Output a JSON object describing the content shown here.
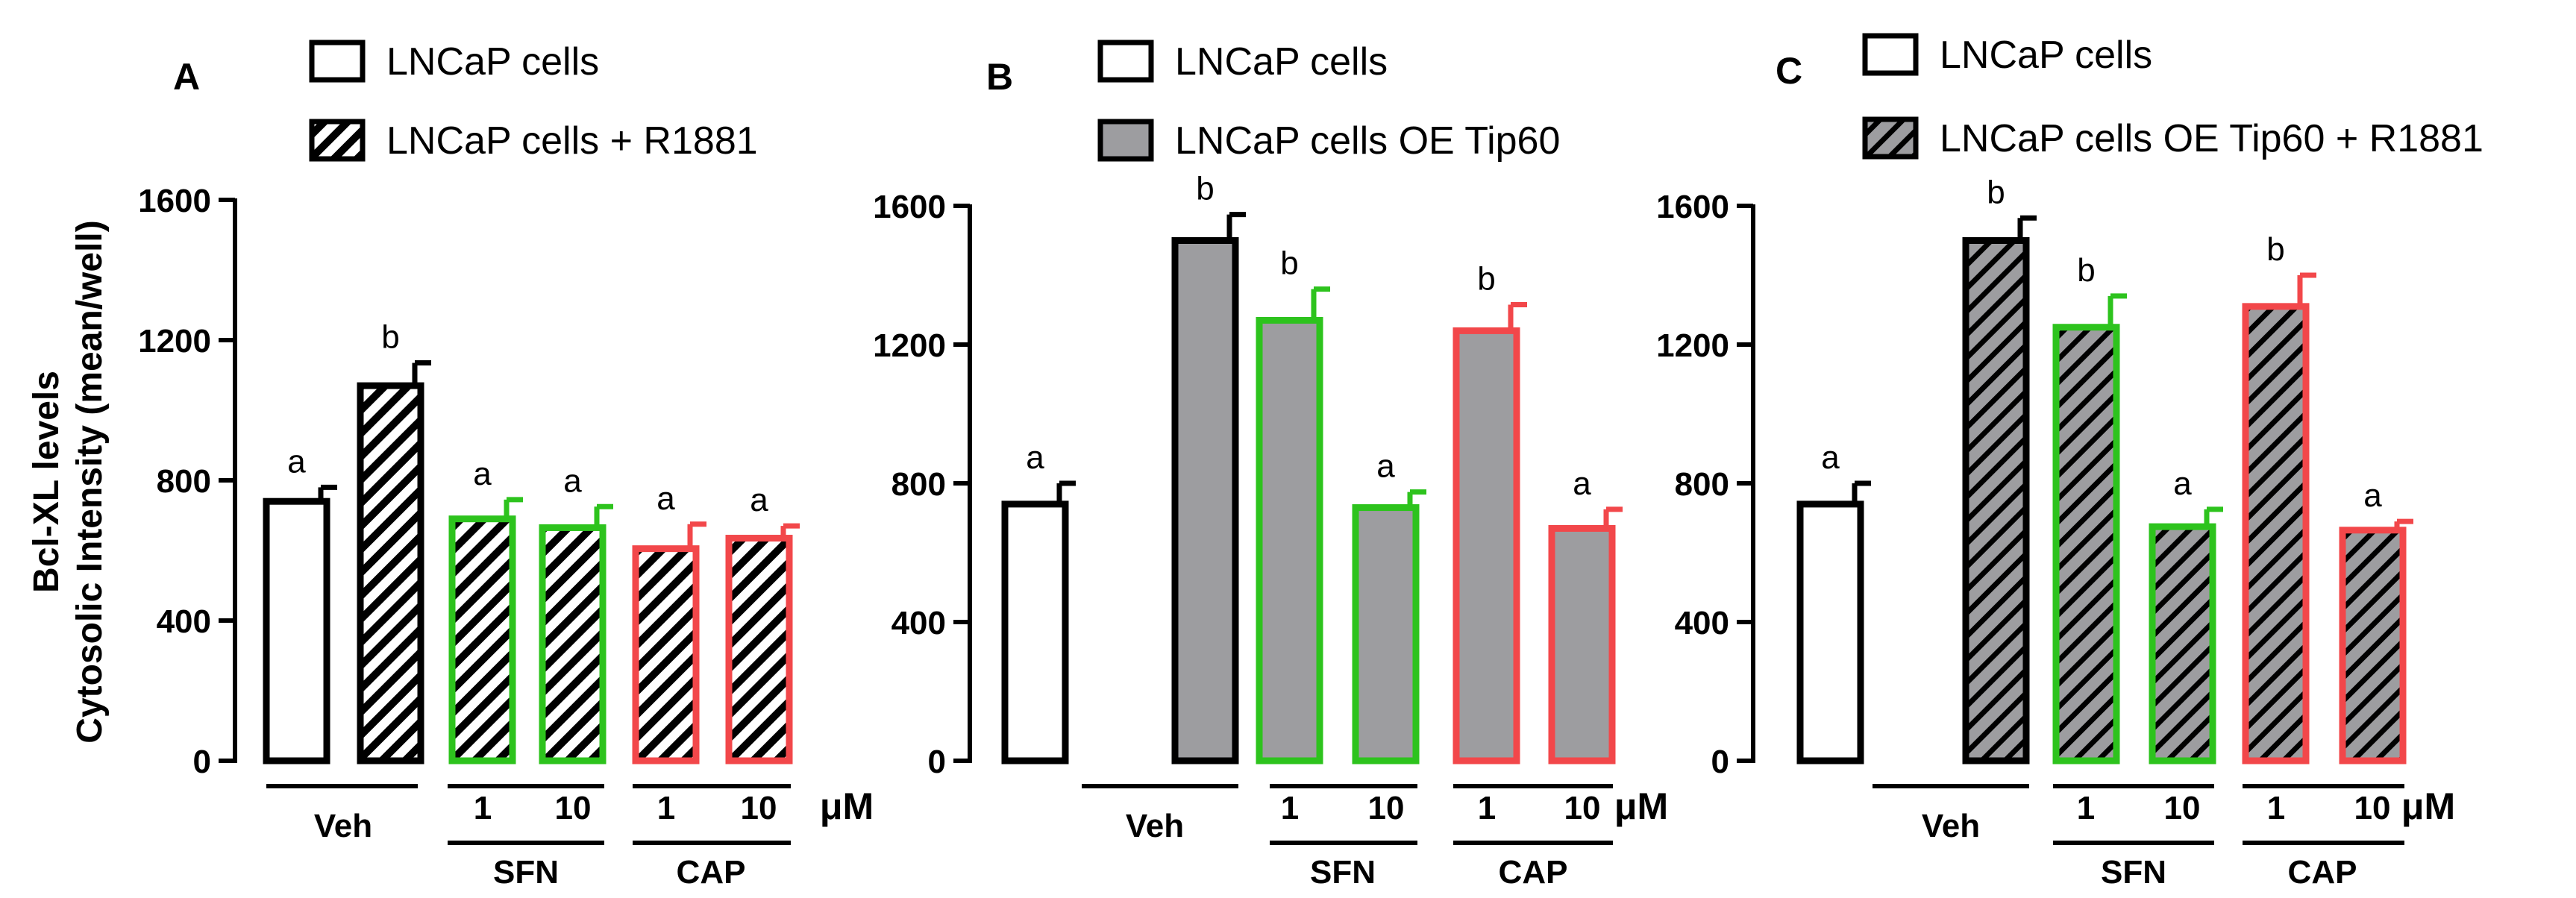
{
  "colors": {
    "veh": "#000000",
    "sfn": "#2dc31d",
    "cap": "#f2474a",
    "gray": "#9d9da0",
    "white": "#ffffff"
  },
  "chart_data": [
    {
      "type": "bar",
      "panel": "A",
      "ylabel": [
        "Bcl-XL levels",
        "Cytosolic Intensity (mean/well)"
      ],
      "ylim": [
        0,
        1600
      ],
      "yticks": [
        0,
        400,
        800,
        1200,
        1600
      ],
      "legend": [
        {
          "label": "LNCaP cells",
          "fill": "white"
        },
        {
          "label": "LNCaP cells + R1881",
          "fill": "hatch"
        }
      ],
      "bars": [
        {
          "group": "veh",
          "value": 740,
          "error": 40,
          "fill": "white",
          "letter": "a"
        },
        {
          "group": "veh",
          "value": 1070,
          "error": 65,
          "fill": "hatch",
          "letter": "b"
        },
        {
          "group": "sfn",
          "value": 690,
          "error": 55,
          "fill": "hatch",
          "letter": "a"
        },
        {
          "group": "sfn",
          "value": 665,
          "error": 60,
          "fill": "hatch",
          "letter": "a"
        },
        {
          "group": "cap",
          "value": 605,
          "error": 70,
          "fill": "hatch",
          "letter": "a"
        },
        {
          "group": "cap",
          "value": 635,
          "error": 35,
          "fill": "hatch",
          "letter": "a"
        }
      ],
      "categories": [
        "Veh",
        "1",
        "10",
        "1",
        "10"
      ],
      "groups": [
        "SFN",
        "CAP"
      ],
      "unit": "μM"
    },
    {
      "type": "bar",
      "panel": "B",
      "ylim": [
        0,
        1600
      ],
      "yticks": [
        0,
        400,
        800,
        1200,
        1600
      ],
      "legend": [
        {
          "label": "LNCaP cells",
          "fill": "white"
        },
        {
          "label": "LNCaP cells OE Tip60",
          "fill": "gray"
        }
      ],
      "bars": [
        {
          "group": "veh",
          "value": 740,
          "error": 60,
          "fill": "white",
          "letter": "a"
        },
        {
          "group": "veh",
          "value": 1500,
          "error": 75,
          "fill": "gray",
          "letter": "b"
        },
        {
          "group": "sfn",
          "value": 1270,
          "error": 90,
          "fill": "gray",
          "letter": "b"
        },
        {
          "group": "sfn",
          "value": 730,
          "error": 45,
          "fill": "gray",
          "letter": "a"
        },
        {
          "group": "cap",
          "value": 1240,
          "error": 75,
          "fill": "gray",
          "letter": "b"
        },
        {
          "group": "cap",
          "value": 670,
          "error": 55,
          "fill": "gray",
          "letter": "a"
        }
      ],
      "categories": [
        "Veh",
        "1",
        "10",
        "1",
        "10"
      ],
      "groups": [
        "SFN",
        "CAP"
      ],
      "unit": "μM"
    },
    {
      "type": "bar",
      "panel": "C",
      "ylim": [
        0,
        1600
      ],
      "yticks": [
        0,
        400,
        800,
        1200,
        1600
      ],
      "legend": [
        {
          "label": "LNCaP cells",
          "fill": "white"
        },
        {
          "label": "LNCaP cells OE Tip60 + R1881",
          "fill": "grayhatch"
        }
      ],
      "bars": [
        {
          "group": "veh",
          "value": 740,
          "error": 60,
          "fill": "white",
          "letter": "a"
        },
        {
          "group": "veh",
          "value": 1500,
          "error": 65,
          "fill": "grayhatch",
          "letter": "b"
        },
        {
          "group": "sfn",
          "value": 1250,
          "error": 90,
          "fill": "grayhatch",
          "letter": "b"
        },
        {
          "group": "sfn",
          "value": 675,
          "error": 50,
          "fill": "grayhatch",
          "letter": "a"
        },
        {
          "group": "cap",
          "value": 1310,
          "error": 90,
          "fill": "grayhatch",
          "letter": "b"
        },
        {
          "group": "cap",
          "value": 665,
          "error": 25,
          "fill": "grayhatch",
          "letter": "a"
        }
      ],
      "categories": [
        "Veh",
        "1",
        "10",
        "1",
        "10"
      ],
      "groups": [
        "SFN",
        "CAP"
      ],
      "unit": "μM"
    }
  ]
}
